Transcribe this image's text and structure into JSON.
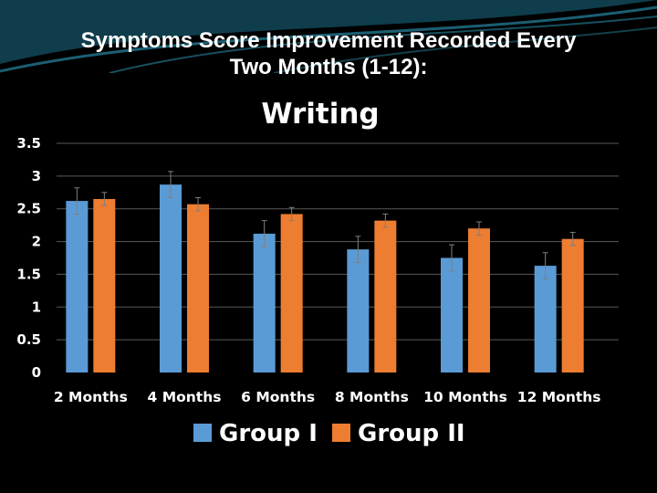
{
  "slide": {
    "title_line1": "Symptoms Score Improvement Recorded Every",
    "title_line2": "Two Months (1-12):"
  },
  "colors": {
    "background": "#000000",
    "group1": "#5b9bd5",
    "group2": "#ed7d31",
    "gridline": "#595959",
    "header_wave": "#1b5f73"
  },
  "chart_data": {
    "type": "bar",
    "title": "Writing",
    "categories": [
      "2 Months",
      "4 Months",
      "6 Months",
      "8 Months",
      "10 Months",
      "12 Months"
    ],
    "series": [
      {
        "name": "Group I",
        "values": [
          2.62,
          2.87,
          2.12,
          1.88,
          1.75,
          1.63
        ],
        "errors": [
          0.2,
          0.2,
          0.2,
          0.2,
          0.2,
          0.2
        ]
      },
      {
        "name": "Group II",
        "values": [
          2.65,
          2.57,
          2.42,
          2.32,
          2.2,
          2.04
        ],
        "errors": [
          0.1,
          0.1,
          0.1,
          0.1,
          0.1,
          0.1
        ]
      }
    ],
    "yticks": [
      "0",
      "0.5",
      "1",
      "1.5",
      "2",
      "2.5",
      "3",
      "3.5"
    ],
    "ylim": [
      0,
      3.5
    ],
    "grid": true,
    "legend_position": "bottom",
    "xlabel": "",
    "ylabel": ""
  }
}
